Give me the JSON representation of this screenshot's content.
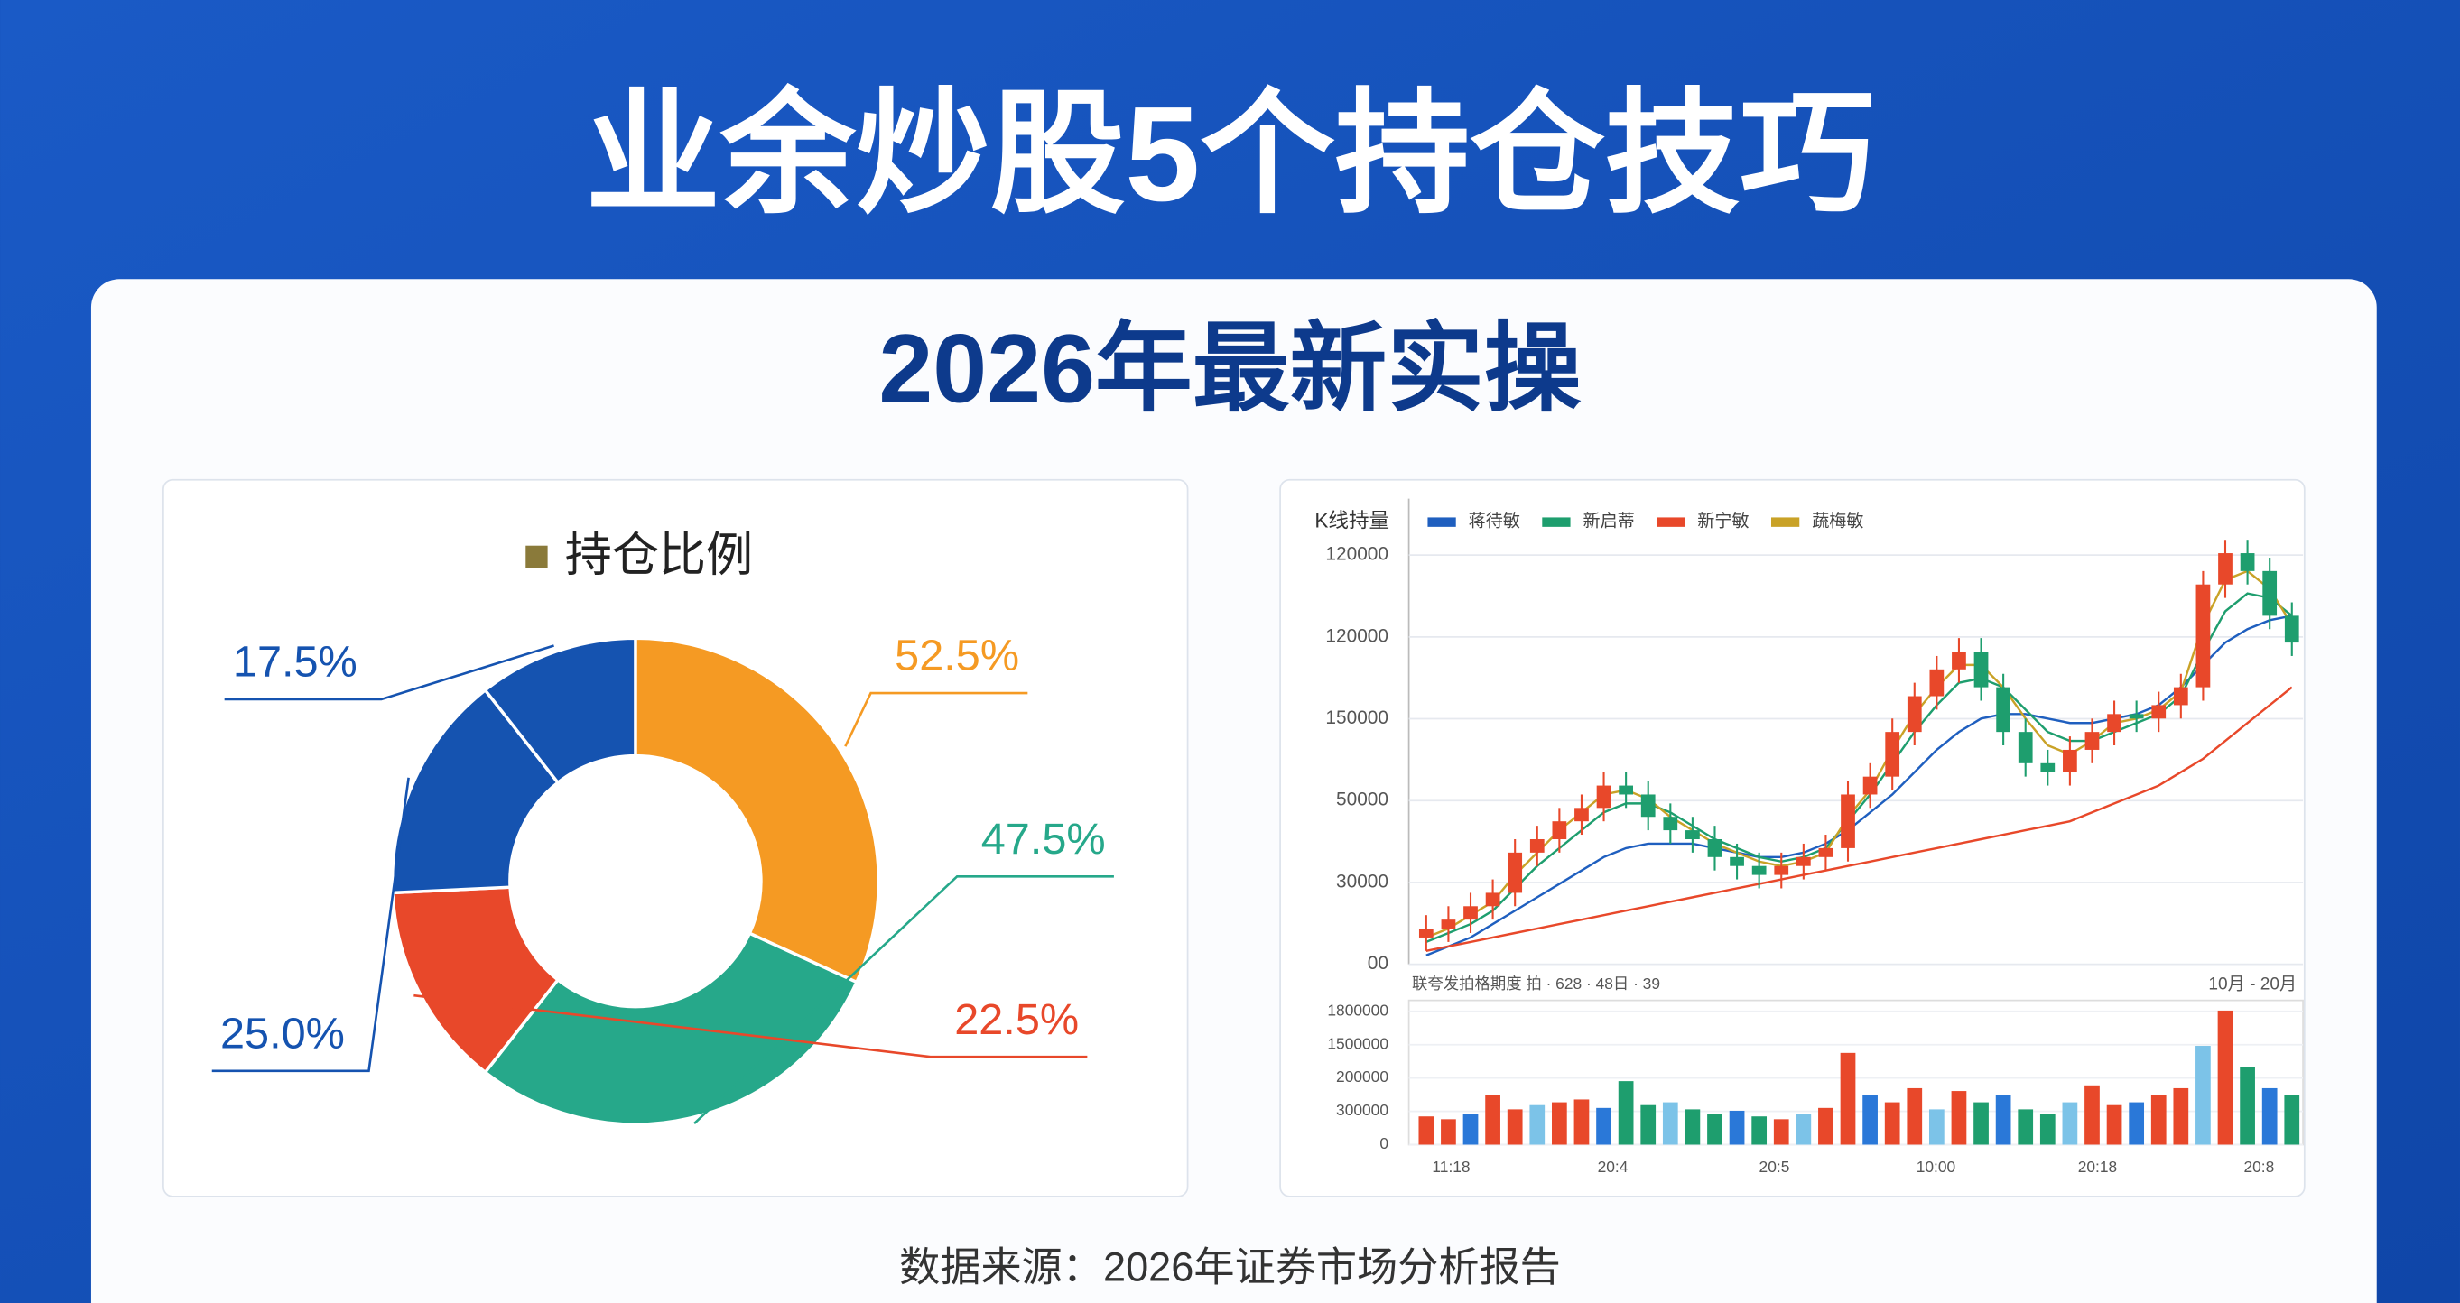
{
  "title": "业余炒股5个持仓技巧",
  "subtitle": "2026年最新实操",
  "source": "数据来源：2026年证券市场分析报告",
  "chart_data": [
    {
      "type": "pie",
      "legend": "持仓比例",
      "legend_color": "#8a7a3a",
      "values": [
        52.5,
        47.5,
        22.5,
        25.0,
        17.5
      ],
      "value_labels": [
        "52.5%",
        "47.5%",
        "22.5%",
        "25.0%",
        "17.5%"
      ],
      "colors": [
        "#f59a23",
        "#26a88a",
        "#e8482a",
        "#1553b0",
        "#1553b0"
      ]
    },
    {
      "type": "candlestick",
      "title": "K线持量",
      "open": [
        6,
        8,
        10,
        13,
        16,
        25,
        28,
        32,
        35,
        40,
        38,
        33,
        30,
        28,
        24,
        22,
        20,
        22,
        24,
        26,
        38,
        42,
        52,
        60,
        66,
        70,
        62,
        52,
        45,
        43,
        48,
        52,
        56,
        55,
        58,
        62,
        85,
        92,
        88,
        78
      ],
      "close": [
        8,
        10,
        13,
        16,
        25,
        28,
        32,
        35,
        40,
        38,
        33,
        30,
        28,
        24,
        22,
        20,
        22,
        24,
        26,
        38,
        42,
        52,
        60,
        66,
        70,
        62,
        52,
        45,
        43,
        48,
        52,
        56,
        55,
        58,
        62,
        85,
        92,
        88,
        78,
        72
      ],
      "high": [
        11,
        13,
        16,
        19,
        28,
        31,
        35,
        38,
        43,
        43,
        41,
        36,
        33,
        31,
        27,
        25,
        25,
        27,
        29,
        41,
        45,
        55,
        63,
        69,
        73,
        73,
        65,
        55,
        48,
        51,
        55,
        59,
        59,
        61,
        65,
        88,
        95,
        95,
        91,
        81
      ],
      "low": [
        3,
        5,
        7,
        10,
        13,
        22,
        25,
        29,
        32,
        35,
        30,
        27,
        25,
        21,
        19,
        17,
        17,
        19,
        21,
        23,
        35,
        39,
        49,
        57,
        63,
        59,
        49,
        42,
        40,
        40,
        45,
        49,
        52,
        52,
        55,
        59,
        82,
        85,
        75,
        69
      ],
      "up_color": "#e8482a",
      "down_color": "#1e9e6e",
      "ylim": [
        0,
        100
      ],
      "y_labels": [
        "120000",
        "120000",
        "150000",
        "50000",
        "30000",
        "00"
      ],
      "series": [
        {
          "name": "蒋待敏",
          "color": "#1f5fbf",
          "values": [
            2,
            4,
            6,
            9,
            12,
            15,
            18,
            21,
            24,
            26,
            27,
            27,
            27,
            26,
            25,
            24,
            24,
            25,
            27,
            30,
            34,
            38,
            43,
            48,
            52,
            55,
            56,
            56,
            55,
            54,
            54,
            55,
            56,
            58,
            62,
            67,
            72,
            75,
            77,
            78
          ]
        },
        {
          "name": "新启蒂",
          "color": "#1e9e6e",
          "values": [
            5,
            7,
            9,
            12,
            17,
            22,
            26,
            30,
            34,
            36,
            36,
            34,
            31,
            28,
            26,
            24,
            23,
            24,
            26,
            32,
            38,
            45,
            52,
            58,
            63,
            64,
            62,
            57,
            52,
            50,
            50,
            52,
            54,
            56,
            60,
            70,
            79,
            83,
            82,
            78
          ]
        },
        {
          "name": "新宁敏",
          "color": "#e8482a",
          "values": [
            3,
            4,
            5,
            6,
            7,
            8,
            9,
            10,
            11,
            12,
            13,
            14,
            15,
            16,
            17,
            18,
            19,
            20,
            21,
            22,
            23,
            24,
            25,
            26,
            27,
            28,
            29,
            30,
            31,
            32,
            34,
            36,
            38,
            40,
            43,
            46,
            50,
            54,
            58,
            62
          ]
        },
        {
          "name": "蔬梅敏",
          "color": "#c9a227",
          "values": [
            6,
            8,
            11,
            14,
            20,
            25,
            30,
            34,
            38,
            39,
            37,
            33,
            30,
            27,
            25,
            23,
            22,
            23,
            25,
            33,
            39,
            48,
            56,
            62,
            67,
            67,
            62,
            55,
            49,
            47,
            50,
            54,
            55,
            57,
            61,
            76,
            86,
            88,
            84,
            76
          ]
        }
      ]
    },
    {
      "type": "bar",
      "note_left": "联夸发拍格期度 拍 · 628 · 48日 · 39",
      "note_right": "10月 - 20月",
      "values": [
        20,
        18,
        22,
        35,
        25,
        28,
        30,
        32,
        26,
        45,
        28,
        30,
        25,
        22,
        24,
        20,
        18,
        22,
        26,
        65,
        35,
        30,
        40,
        25,
        38,
        30,
        35,
        25,
        22,
        30,
        42,
        28,
        30,
        35,
        40,
        70,
        95,
        55,
        40,
        35
      ],
      "colors": [
        "#e8482a",
        "#1e9e6e",
        "#2a78d8",
        "#7cc3e8"
      ],
      "ylim": [
        0,
        100
      ],
      "y_labels": [
        "1800000",
        "1500000",
        "200000",
        "300000",
        "0"
      ],
      "x_labels": [
        "11:18",
        "20:4",
        "20:5",
        "10:00",
        "20:18",
        "20:8"
      ]
    }
  ]
}
